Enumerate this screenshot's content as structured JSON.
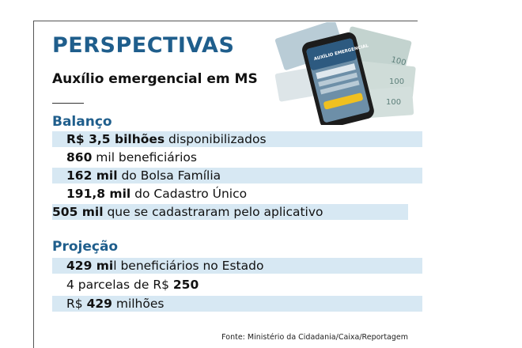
{
  "header": {
    "title": "PERSPECTIVAS",
    "subtitle": "Auxílio emergencial em MS"
  },
  "photo": {
    "icon": "phone-with-money-icon",
    "phone_text": "AUXÍLIO EMERGENCIAL",
    "note_value": "100"
  },
  "balanco": {
    "heading": "Balanço",
    "rows": [
      {
        "bold": "R$ 3,5 bilhões",
        "rest": " disponibilizados"
      },
      {
        "bold": "860",
        "rest": " mil beneficiários"
      },
      {
        "bold": "162 mil",
        "rest": " do Bolsa Família"
      },
      {
        "bold": "191,8 mil",
        "rest": " do Cadastro Único"
      },
      {
        "bold": "505 mil",
        "rest": " que se cadastraram pelo aplicativo"
      }
    ]
  },
  "projecao": {
    "heading": "Projeção",
    "rows": [
      {
        "bold": "429 mi",
        "rest": "l beneficiários no Estado"
      },
      {
        "pre": "4 parcelas de R$ ",
        "bold": "250"
      },
      {
        "pre": "R$ ",
        "bold": "429",
        "rest": " milhões"
      }
    ]
  },
  "footer": {
    "source": "Fonte: Ministério da Cidadania/Caixa/Reportagem"
  },
  "colors": {
    "accent": "#1f5e8c",
    "row_shade": "#d7e8f3"
  }
}
